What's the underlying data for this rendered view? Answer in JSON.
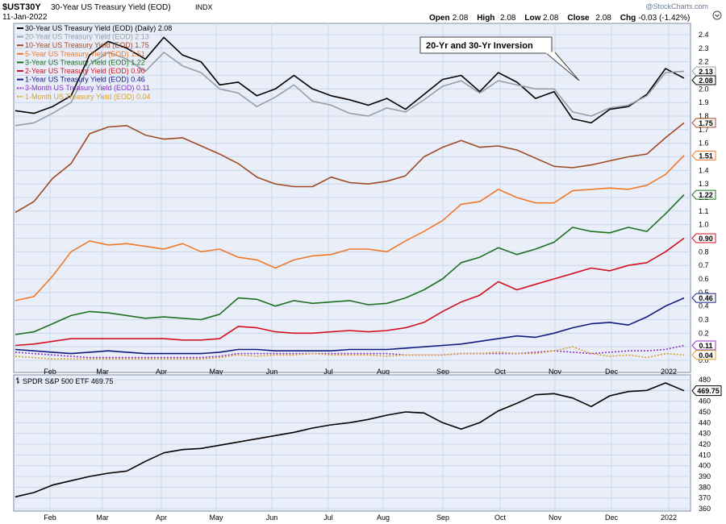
{
  "header": {
    "symbol": "$UST30Y",
    "name": "30-Year US Treasury Yield (EOD)",
    "exchange": "INDX",
    "date": "11-Jan-2022",
    "ohlc": [
      {
        "label": "Open",
        "value": "2.08"
      },
      {
        "label": "High",
        "value": "2.08"
      },
      {
        "label": "Low",
        "value": "2.08"
      },
      {
        "label": "Close",
        "value": "2.08"
      },
      {
        "label": "Chg",
        "value": "-0.03 (-1.42%)"
      }
    ],
    "watermark": "@StockCharts.com"
  },
  "annotation": "20-Yr and 30-Yr Inversion",
  "colors": {
    "panel_bg": "#e9eef8",
    "grid": "#c3d3e8",
    "frame": "#7f8ea6"
  },
  "chart_data": [
    {
      "type": "line",
      "ylim": [
        0,
        2.5
      ],
      "yticks": [
        "0.0",
        "0.1",
        "0.2",
        "0.3",
        "0.4",
        "0.5",
        "0.6",
        "0.7",
        "0.8",
        "0.9",
        "1.0",
        "1.1",
        "1.2",
        "1.3",
        "1.4",
        "1.5",
        "1.6",
        "1.7",
        "1.8",
        "1.9",
        "2.0",
        "2.1",
        "2.2",
        "2.3",
        "2.4"
      ],
      "months": [
        "Feb",
        "Mar",
        "Apr",
        "May",
        "Jun",
        "Jul",
        "Aug",
        "Sep",
        "Oct",
        "Nov",
        "Dec",
        "2022"
      ],
      "series": [
        {
          "name": "30-Year US Treasury Yield (EOD) (Daily) 2.08",
          "tag": "2.08",
          "color": "#000000",
          "dash": false,
          "values": [
            1.84,
            1.82,
            1.87,
            1.95,
            2.25,
            2.35,
            2.3,
            2.22,
            2.38,
            2.25,
            2.2,
            2.03,
            2.05,
            1.95,
            2.0,
            2.1,
            2.0,
            1.95,
            1.92,
            1.88,
            1.93,
            1.85,
            1.96,
            2.07,
            2.1,
            1.98,
            2.12,
            2.05,
            1.93,
            1.98,
            1.78,
            1.75,
            1.85,
            1.87,
            1.96,
            2.15,
            2.08
          ]
        },
        {
          "name": "20-Year US Treasury Yield (EOD) 2.13",
          "tag": "2.13",
          "color": "#969fa8",
          "dash": false,
          "values": [
            1.73,
            1.75,
            1.82,
            1.9,
            2.18,
            2.27,
            2.22,
            2.13,
            2.27,
            2.17,
            2.12,
            2.0,
            1.97,
            1.87,
            1.94,
            2.03,
            1.91,
            1.88,
            1.82,
            1.8,
            1.86,
            1.83,
            1.92,
            2.02,
            2.06,
            1.97,
            2.06,
            2.03,
            2.0,
            2.0,
            1.83,
            1.8,
            1.86,
            1.88,
            1.95,
            2.12,
            2.13
          ]
        },
        {
          "name": "10-Year US Treasury Yield (EOD) 1.75",
          "tag": "1.75",
          "color": "#a04a24",
          "dash": false,
          "values": [
            1.09,
            1.17,
            1.34,
            1.45,
            1.67,
            1.72,
            1.73,
            1.66,
            1.63,
            1.64,
            1.58,
            1.52,
            1.45,
            1.35,
            1.3,
            1.28,
            1.28,
            1.35,
            1.31,
            1.3,
            1.32,
            1.36,
            1.5,
            1.57,
            1.62,
            1.57,
            1.58,
            1.55,
            1.49,
            1.43,
            1.42,
            1.44,
            1.47,
            1.5,
            1.52,
            1.64,
            1.75
          ]
        },
        {
          "name": "5-Year US Treasury Yield (EOD) 1.51",
          "tag": "1.51",
          "color": "#f07828",
          "dash": false,
          "values": [
            0.44,
            0.47,
            0.62,
            0.8,
            0.88,
            0.85,
            0.86,
            0.84,
            0.82,
            0.86,
            0.8,
            0.82,
            0.76,
            0.74,
            0.68,
            0.74,
            0.77,
            0.78,
            0.82,
            0.82,
            0.8,
            0.88,
            0.95,
            1.03,
            1.15,
            1.17,
            1.26,
            1.2,
            1.16,
            1.16,
            1.25,
            1.26,
            1.27,
            1.26,
            1.29,
            1.37,
            1.51
          ]
        },
        {
          "name": "3-Year US Treasury Yield (EOD) 1.22",
          "tag": "1.22",
          "color": "#1e701e",
          "dash": false,
          "values": [
            0.19,
            0.21,
            0.27,
            0.33,
            0.36,
            0.35,
            0.33,
            0.31,
            0.32,
            0.31,
            0.3,
            0.34,
            0.46,
            0.45,
            0.4,
            0.44,
            0.42,
            0.43,
            0.44,
            0.41,
            0.42,
            0.46,
            0.52,
            0.6,
            0.72,
            0.76,
            0.83,
            0.78,
            0.82,
            0.87,
            0.98,
            0.95,
            0.94,
            0.98,
            0.95,
            1.08,
            1.22
          ]
        },
        {
          "name": "2-Year US Treasury Yield (EOD) 0.90",
          "tag": "0.90",
          "color": "#d2101e",
          "dash": false,
          "values": [
            0.11,
            0.12,
            0.14,
            0.16,
            0.16,
            0.16,
            0.16,
            0.16,
            0.16,
            0.15,
            0.15,
            0.16,
            0.25,
            0.24,
            0.21,
            0.2,
            0.2,
            0.21,
            0.22,
            0.21,
            0.22,
            0.24,
            0.28,
            0.36,
            0.43,
            0.48,
            0.58,
            0.52,
            0.56,
            0.6,
            0.64,
            0.68,
            0.66,
            0.7,
            0.72,
            0.8,
            0.9
          ]
        },
        {
          "name": "1-Year US Treasury Yield (EOD) 0.46",
          "tag": "0.46",
          "color": "#121a80",
          "dash": false,
          "values": [
            0.08,
            0.07,
            0.06,
            0.05,
            0.06,
            0.07,
            0.06,
            0.05,
            0.05,
            0.05,
            0.05,
            0.06,
            0.08,
            0.08,
            0.07,
            0.07,
            0.07,
            0.07,
            0.08,
            0.08,
            0.08,
            0.09,
            0.1,
            0.11,
            0.12,
            0.14,
            0.16,
            0.18,
            0.17,
            0.2,
            0.24,
            0.27,
            0.28,
            0.26,
            0.32,
            0.4,
            0.46
          ]
        },
        {
          "name": "3-Month US Treasury Yield (EOD) 0.11",
          "tag": "0.11",
          "color": "#8c34c8",
          "dash": true,
          "values": [
            0.06,
            0.05,
            0.04,
            0.03,
            0.02,
            0.02,
            0.02,
            0.02,
            0.02,
            0.02,
            0.02,
            0.03,
            0.05,
            0.05,
            0.05,
            0.05,
            0.05,
            0.05,
            0.05,
            0.05,
            0.05,
            0.04,
            0.04,
            0.04,
            0.05,
            0.05,
            0.05,
            0.05,
            0.06,
            0.07,
            0.06,
            0.05,
            0.06,
            0.07,
            0.07,
            0.08,
            0.11
          ]
        },
        {
          "name": "1-Month US Treasury Yield (EOD) 0.04",
          "tag": "0.04",
          "color": "#dca02a",
          "dash": true,
          "values": [
            0.03,
            0.02,
            0.01,
            0.01,
            0.01,
            0.01,
            0.01,
            0.01,
            0.01,
            0.01,
            0.01,
            0.02,
            0.04,
            0.03,
            0.04,
            0.04,
            0.05,
            0.04,
            0.04,
            0.04,
            0.03,
            0.04,
            0.04,
            0.04,
            0.05,
            0.05,
            0.06,
            0.05,
            0.05,
            0.07,
            0.1,
            0.05,
            0.03,
            0.04,
            0.02,
            0.05,
            0.04
          ]
        }
      ]
    },
    {
      "type": "line",
      "ylim": [
        359,
        482
      ],
      "yticks": [
        "360",
        "370",
        "380",
        "390",
        "400",
        "410",
        "420",
        "430",
        "440",
        "450",
        "460",
        "470",
        "480"
      ],
      "months": [
        "Feb",
        "Mar",
        "Apr",
        "May",
        "Jun",
        "Jul",
        "Aug",
        "Sep",
        "Oct",
        "Nov",
        "Dec",
        "2022"
      ],
      "series": [
        {
          "name": "SPDR S&P 500 ETF 469.75",
          "tag": "469.75",
          "color": "#000000",
          "dash": false,
          "values": [
            371,
            375,
            382,
            386,
            390,
            393,
            395,
            404,
            412,
            415,
            416,
            419,
            422,
            425,
            428,
            431,
            435,
            438,
            440,
            443,
            447,
            450,
            449,
            440,
            434,
            440,
            451,
            458,
            466,
            467,
            463,
            455,
            465,
            469,
            470,
            477,
            469.75
          ]
        }
      ]
    }
  ]
}
